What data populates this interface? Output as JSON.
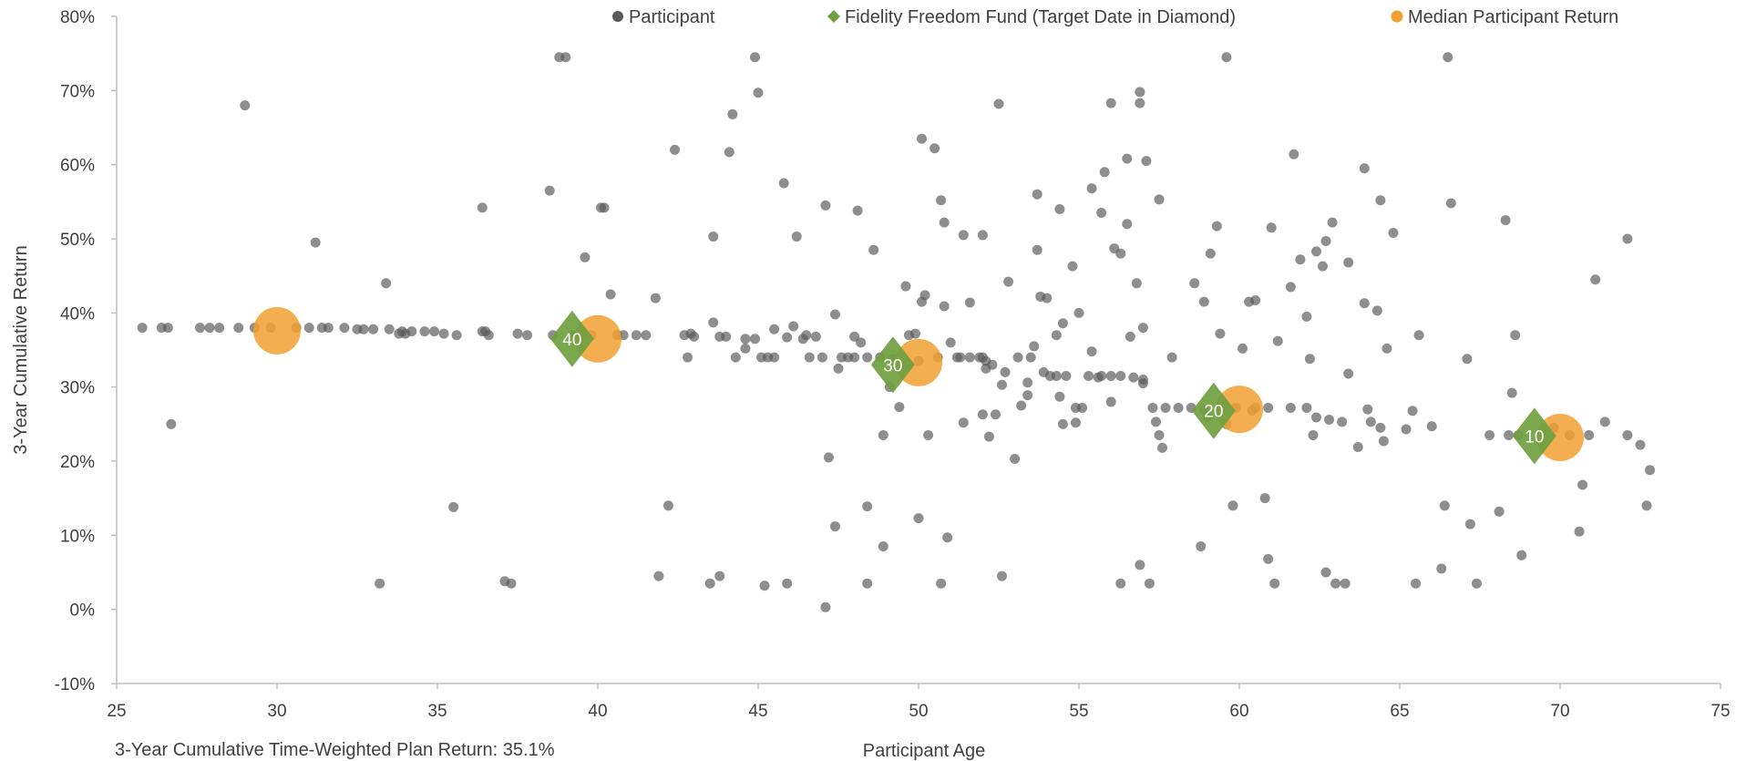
{
  "chart_data": {
    "type": "scatter",
    "title": "",
    "xlabel": "Participant Age",
    "ylabel": "3-Year Cumulative Return",
    "xlim": [
      25,
      75
    ],
    "ylim": [
      -10,
      80
    ],
    "x_ticks": [
      "25",
      "30",
      "35",
      "40",
      "45",
      "50",
      "55",
      "60",
      "65",
      "70",
      "75"
    ],
    "y_ticks": [
      "80%",
      "70%",
      "60%",
      "50%",
      "40%",
      "30%",
      "20%",
      "10%",
      "0%",
      "-10%"
    ],
    "grid": false,
    "legend": {
      "position": "top"
    },
    "footnote": "3-Year Cumulative Time-Weighted  Plan Return:  35.1%",
    "series": [
      {
        "name": "Participant",
        "marker": "circle",
        "color": "#595959",
        "points": [
          [
            25.8,
            38
          ],
          [
            26.4,
            38
          ],
          [
            26.6,
            38
          ],
          [
            26.7,
            25
          ],
          [
            27.6,
            38
          ],
          [
            27.9,
            38
          ],
          [
            28.2,
            38
          ],
          [
            28.8,
            38
          ],
          [
            29.0,
            68
          ],
          [
            29.3,
            38
          ],
          [
            29.8,
            38
          ],
          [
            30.6,
            38
          ],
          [
            31.0,
            38
          ],
          [
            31.2,
            49.5
          ],
          [
            31.4,
            38
          ],
          [
            31.6,
            38
          ],
          [
            32.1,
            38
          ],
          [
            32.5,
            37.8
          ],
          [
            32.7,
            37.8
          ],
          [
            33.0,
            37.8
          ],
          [
            33.2,
            3.5
          ],
          [
            33.4,
            44
          ],
          [
            33.5,
            37.8
          ],
          [
            33.8,
            37.2
          ],
          [
            34.0,
            37.2
          ],
          [
            34.2,
            37.5
          ],
          [
            34.6,
            37.5
          ],
          [
            34.9,
            37.5
          ],
          [
            35.2,
            37.2
          ],
          [
            35.5,
            13.8
          ],
          [
            35.6,
            37
          ],
          [
            36.4,
            54.2
          ],
          [
            36.5,
            37.5
          ],
          [
            36.6,
            37
          ],
          [
            37.1,
            3.8
          ],
          [
            37.3,
            3.5
          ],
          [
            37.5,
            37.2
          ],
          [
            37.8,
            37
          ],
          [
            38.5,
            56.5
          ],
          [
            38.8,
            74.5
          ],
          [
            39.0,
            74.5
          ],
          [
            39.2,
            37
          ],
          [
            39.6,
            47.5
          ],
          [
            39.8,
            37
          ],
          [
            40.1,
            54.2
          ],
          [
            40.2,
            54.2
          ],
          [
            40.4,
            42.5
          ],
          [
            40.6,
            37
          ],
          [
            41.2,
            37
          ],
          [
            41.8,
            42
          ],
          [
            41.9,
            4.5
          ],
          [
            42.2,
            14
          ],
          [
            42.4,
            62
          ],
          [
            42.7,
            37
          ],
          [
            42.8,
            34
          ],
          [
            43.0,
            36.8
          ],
          [
            43.5,
            3.5
          ],
          [
            43.6,
            38.7
          ],
          [
            43.6,
            50.3
          ],
          [
            43.8,
            36.8
          ],
          [
            43.8,
            4.5
          ],
          [
            44.1,
            61.7
          ],
          [
            44.2,
            66.8
          ],
          [
            44.3,
            34
          ],
          [
            44.6,
            36.5
          ],
          [
            44.6,
            35.2
          ],
          [
            44.9,
            36.5
          ],
          [
            44.9,
            74.5
          ],
          [
            45.0,
            69.7
          ],
          [
            45.1,
            34
          ],
          [
            45.2,
            3.2
          ],
          [
            45.5,
            34
          ],
          [
            45.5,
            37.8
          ],
          [
            45.8,
            57.5
          ],
          [
            45.9,
            3.5
          ],
          [
            45.9,
            36.7
          ],
          [
            46.1,
            38.2
          ],
          [
            46.2,
            50.3
          ],
          [
            46.4,
            36.5
          ],
          [
            46.6,
            34
          ],
          [
            46.8,
            36.8
          ],
          [
            47.0,
            34
          ],
          [
            47.1,
            54.5
          ],
          [
            47.1,
            0.3
          ],
          [
            47.2,
            20.5
          ],
          [
            47.4,
            11.2
          ],
          [
            47.4,
            39.8
          ],
          [
            47.5,
            32.5
          ],
          [
            47.8,
            34
          ],
          [
            48.0,
            36.8
          ],
          [
            48.1,
            53.8
          ],
          [
            48.2,
            36
          ],
          [
            48.4,
            34
          ],
          [
            48.4,
            3.5
          ],
          [
            48.4,
            13.9
          ],
          [
            48.6,
            48.5
          ],
          [
            48.9,
            23.5
          ],
          [
            48.9,
            8.5
          ],
          [
            49.1,
            30
          ],
          [
            49.4,
            27.3
          ],
          [
            49.6,
            43.6
          ],
          [
            49.9,
            37.2
          ],
          [
            50.0,
            12.3
          ],
          [
            50.1,
            63.5
          ],
          [
            50.1,
            41.5
          ],
          [
            50.2,
            42.4
          ],
          [
            50.3,
            23.5
          ],
          [
            50.5,
            62.2
          ],
          [
            50.7,
            3.5
          ],
          [
            50.7,
            55.2
          ],
          [
            50.8,
            52.2
          ],
          [
            50.8,
            40.9
          ],
          [
            50.9,
            9.7
          ],
          [
            51.0,
            36
          ],
          [
            51.2,
            34
          ],
          [
            51.4,
            25.2
          ],
          [
            51.4,
            50.5
          ],
          [
            51.6,
            41.4
          ],
          [
            52.0,
            50.5
          ],
          [
            52.0,
            26.3
          ],
          [
            52.1,
            32.5
          ],
          [
            52.2,
            23.3
          ],
          [
            52.4,
            26.3
          ],
          [
            52.5,
            68.2
          ],
          [
            52.6,
            4.5
          ],
          [
            52.6,
            30.3
          ],
          [
            52.8,
            44.2
          ],
          [
            53.0,
            20.3
          ],
          [
            53.1,
            34
          ],
          [
            53.4,
            28.9
          ],
          [
            53.4,
            30.6
          ],
          [
            53.6,
            35.5
          ],
          [
            53.7,
            56
          ],
          [
            53.7,
            48.5
          ],
          [
            53.8,
            42.2
          ],
          [
            54.0,
            42
          ],
          [
            54.3,
            37
          ],
          [
            54.4,
            28.7
          ],
          [
            54.4,
            54
          ],
          [
            54.5,
            38.6
          ],
          [
            54.5,
            25
          ],
          [
            54.8,
            46.3
          ],
          [
            54.9,
            25.2
          ],
          [
            55.0,
            40
          ],
          [
            55.4,
            56.8
          ],
          [
            55.4,
            34.8
          ],
          [
            55.7,
            53.5
          ],
          [
            55.7,
            31.5
          ],
          [
            55.8,
            59
          ],
          [
            56.0,
            68.3
          ],
          [
            56.1,
            48.7
          ],
          [
            56.3,
            48
          ],
          [
            56.3,
            3.5
          ],
          [
            56.5,
            52
          ],
          [
            56.5,
            60.8
          ],
          [
            56.6,
            36.8
          ],
          [
            56.8,
            44
          ],
          [
            56.9,
            6
          ],
          [
            56.9,
            69.8
          ],
          [
            56.9,
            68.3
          ],
          [
            57.0,
            38
          ],
          [
            57.1,
            60.5
          ],
          [
            57.2,
            3.5
          ],
          [
            57.4,
            25.3
          ],
          [
            57.5,
            55.3
          ],
          [
            57.5,
            23.5
          ],
          [
            57.6,
            21.8
          ],
          [
            57.9,
            34
          ],
          [
            58.6,
            44
          ],
          [
            58.8,
            8.5
          ],
          [
            58.9,
            41.5
          ],
          [
            59.1,
            48
          ],
          [
            59.3,
            51.7
          ],
          [
            59.4,
            37.2
          ],
          [
            59.6,
            74.5
          ],
          [
            59.8,
            14
          ],
          [
            60.1,
            35.2
          ],
          [
            60.3,
            41.5
          ],
          [
            60.5,
            41.7
          ],
          [
            60.8,
            15
          ],
          [
            60.9,
            6.8
          ],
          [
            61.0,
            51.5
          ],
          [
            61.1,
            3.5
          ],
          [
            61.2,
            36.2
          ],
          [
            61.6,
            43.5
          ],
          [
            61.7,
            61.4
          ],
          [
            61.9,
            47.2
          ],
          [
            62.1,
            39.5
          ],
          [
            62.2,
            33.8
          ],
          [
            62.3,
            23.5
          ],
          [
            62.4,
            48.3
          ],
          [
            62.6,
            46.3
          ],
          [
            62.7,
            5
          ],
          [
            62.7,
            49.7
          ],
          [
            62.9,
            52.2
          ],
          [
            63.0,
            3.5
          ],
          [
            63.3,
            3.5
          ],
          [
            63.4,
            46.8
          ],
          [
            63.4,
            31.8
          ],
          [
            63.7,
            21.9
          ],
          [
            63.9,
            59.5
          ],
          [
            63.9,
            41.3
          ],
          [
            64.0,
            27
          ],
          [
            64.1,
            25.3
          ],
          [
            64.3,
            40.3
          ],
          [
            64.4,
            24.5
          ],
          [
            64.4,
            55.2
          ],
          [
            64.5,
            22.7
          ],
          [
            64.6,
            35.2
          ],
          [
            64.8,
            50.8
          ],
          [
            65.2,
            24.3
          ],
          [
            65.4,
            26.8
          ],
          [
            65.5,
            3.5
          ],
          [
            65.6,
            37
          ],
          [
            66.0,
            24.7
          ],
          [
            66.3,
            5.5
          ],
          [
            66.4,
            14
          ],
          [
            66.5,
            74.5
          ],
          [
            66.6,
            54.8
          ],
          [
            67.1,
            33.8
          ],
          [
            67.2,
            11.5
          ],
          [
            67.4,
            3.5
          ],
          [
            67.8,
            23.5
          ],
          [
            68.1,
            13.2
          ],
          [
            68.3,
            52.5
          ],
          [
            68.5,
            29.2
          ],
          [
            68.6,
            37
          ],
          [
            68.8,
            7.3
          ],
          [
            69.8,
            24.5
          ],
          [
            70.6,
            10.5
          ],
          [
            70.7,
            16.8
          ],
          [
            71.1,
            44.5
          ],
          [
            71.4,
            25.3
          ],
          [
            72.1,
            23.5
          ],
          [
            72.1,
            50
          ],
          [
            72.5,
            22.2
          ],
          [
            72.7,
            14
          ],
          [
            72.8,
            18.8
          ],
          [
            36.4,
            37.5
          ],
          [
            38.6,
            37
          ],
          [
            39.5,
            37
          ],
          [
            40.8,
            37
          ],
          [
            44.0,
            36.8
          ],
          [
            45.3,
            34
          ],
          [
            46.5,
            37
          ],
          [
            47.6,
            34
          ],
          [
            48.0,
            34
          ],
          [
            48.8,
            34
          ],
          [
            49.2,
            33.8
          ],
          [
            50.6,
            34
          ],
          [
            51.3,
            34
          ],
          [
            51.6,
            34
          ],
          [
            51.9,
            34
          ],
          [
            52.0,
            34
          ],
          [
            52.1,
            33.5
          ],
          [
            52.3,
            33
          ],
          [
            52.7,
            32
          ],
          [
            53.5,
            34
          ],
          [
            53.9,
            32
          ],
          [
            54.1,
            31.5
          ],
          [
            54.3,
            31.5
          ],
          [
            54.6,
            31.5
          ],
          [
            54.9,
            27.2
          ],
          [
            55.1,
            27.2
          ],
          [
            55.3,
            31.5
          ],
          [
            55.6,
            31.3
          ],
          [
            56.0,
            31.5
          ],
          [
            56.3,
            31.5
          ],
          [
            56.7,
            31.3
          ],
          [
            57.0,
            31
          ],
          [
            57.3,
            27.2
          ],
          [
            57.7,
            27.2
          ],
          [
            58.1,
            27.2
          ],
          [
            58.5,
            27.2
          ],
          [
            59.0,
            26
          ],
          [
            59.6,
            25
          ],
          [
            59.9,
            27.2
          ],
          [
            60.5,
            27.2
          ],
          [
            60.9,
            27.2
          ],
          [
            61.6,
            27.2
          ],
          [
            62.1,
            27.2
          ],
          [
            62.4,
            25.9
          ],
          [
            62.8,
            25.6
          ],
          [
            63.2,
            25.3
          ],
          [
            68.4,
            23.5
          ],
          [
            68.7,
            23.5
          ],
          [
            70.3,
            23.5
          ],
          [
            70.9,
            23.5
          ],
          [
            49.7,
            37
          ],
          [
            50.0,
            33.5
          ],
          [
            53.2,
            27.5
          ],
          [
            57.0,
            30.5
          ],
          [
            56.0,
            28
          ],
          [
            58.9,
            27
          ],
          [
            60.4,
            26.8
          ],
          [
            42.9,
            37.2
          ],
          [
            41.5,
            37
          ],
          [
            33.9,
            37.5
          ]
        ]
      },
      {
        "name": "Fidelity Freedom Fund (Target Date in Diamond)",
        "marker": "diamond",
        "color": "#70a040",
        "points": [
          {
            "x": 39.2,
            "y": 36.5,
            "label": "40"
          },
          {
            "x": 49.2,
            "y": 33.0,
            "label": "30"
          },
          {
            "x": 59.2,
            "y": 26.8,
            "label": "20"
          },
          {
            "x": 69.2,
            "y": 23.4,
            "label": "10"
          }
        ]
      },
      {
        "name": "Median Participant Return",
        "marker": "circle-large",
        "color": "#f0a030",
        "points": [
          [
            30,
            37.6
          ],
          [
            40,
            36.5
          ],
          [
            50,
            33.3
          ],
          [
            60,
            27.0
          ],
          [
            70,
            23.2
          ]
        ]
      }
    ]
  }
}
